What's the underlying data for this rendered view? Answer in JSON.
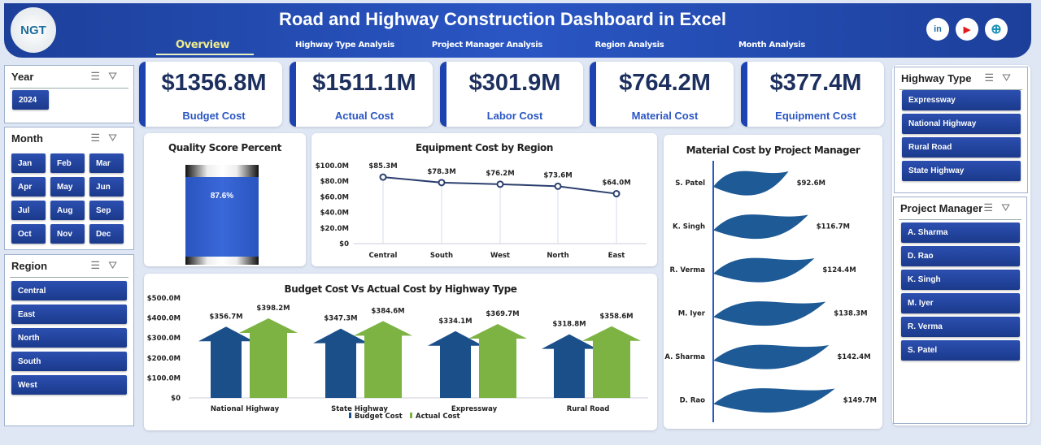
{
  "header": {
    "title": "Road and Highway Construction Dashboard in Excel",
    "logo_text": "NGT",
    "tabs": [
      {
        "label": "Overview",
        "active": true
      },
      {
        "label": "Highway Type Analysis"
      },
      {
        "label": "Project Manager Analysis"
      },
      {
        "label": "Region Analysis"
      },
      {
        "label": "Month Analysis"
      }
    ],
    "social": [
      {
        "icon": "linkedin-icon",
        "text": "in",
        "color": "#1f6fa8"
      },
      {
        "icon": "youtube-icon",
        "text": "▶",
        "color": "#e21b1b"
      },
      {
        "icon": "globe-icon",
        "text": "⊕",
        "color": "#1a8fb5"
      }
    ]
  },
  "slicers": {
    "year": {
      "title": "Year",
      "items": [
        "2024"
      ]
    },
    "month": {
      "title": "Month",
      "items": [
        "Jan",
        "Feb",
        "Mar",
        "Apr",
        "May",
        "Jun",
        "Jul",
        "Aug",
        "Sep",
        "Oct",
        "Nov",
        "Dec"
      ]
    },
    "region": {
      "title": "Region",
      "items": [
        "Central",
        "East",
        "North",
        "South",
        "West"
      ]
    },
    "highway_type": {
      "title": "Highway Type",
      "items": [
        "Expressway",
        "National Highway",
        "Rural Road",
        "State Highway"
      ]
    },
    "project_manager": {
      "title": "Project Manager",
      "items": [
        "A. Sharma",
        "D. Rao",
        "K. Singh",
        "M. Iyer",
        "R. Verma",
        "S. Patel"
      ]
    },
    "multiselect_icon": "☰",
    "clear_filter_icon": "⛛"
  },
  "kpis": [
    {
      "value": "$1356.8M",
      "label": "Budget Cost"
    },
    {
      "value": "$1511.1M",
      "label": "Actual Cost"
    },
    {
      "value": "$301.9M",
      "label": "Labor Cost"
    },
    {
      "value": "$764.2M",
      "label": "Material Cost"
    },
    {
      "value": "$377.4M",
      "label": "Equipment Cost"
    }
  ],
  "colors": {
    "accent": "#1d43b0",
    "budget": "#1b4f8a",
    "actual": "#7cb342",
    "line": "#2b3f6e"
  },
  "chart_data": [
    {
      "type": "gauge",
      "title": "Quality Score Percent",
      "value": 87.6,
      "label": "87.6%"
    },
    {
      "type": "line",
      "title": "Equipment Cost by Region",
      "categories": [
        "Central",
        "South",
        "West",
        "North",
        "East"
      ],
      "values": [
        85.3,
        78.3,
        76.2,
        73.6,
        64.0
      ],
      "labels": [
        "$85.3M",
        "$78.3M",
        "$76.2M",
        "$73.6M",
        "$64.0M"
      ],
      "ylim": [
        0,
        100
      ],
      "yticks": [
        "$0",
        "$20.0M",
        "$40.0M",
        "$60.0M",
        "$80.0M",
        "$100.0M"
      ]
    },
    {
      "type": "bar",
      "title": "Budget Cost Vs Actual Cost by Highway Type",
      "categories": [
        "National Highway",
        "State Highway",
        "Expressway",
        "Rural Road"
      ],
      "series": [
        {
          "name": "Budget Cost",
          "values": [
            356.7,
            347.3,
            334.1,
            318.8
          ],
          "labels": [
            "$356.7M",
            "$347.3M",
            "$334.1M",
            "$318.8M"
          ]
        },
        {
          "name": "Actual Cost",
          "values": [
            398.2,
            384.6,
            369.7,
            358.6
          ],
          "labels": [
            "$398.2M",
            "$384.6M",
            "$369.7M",
            "$358.6M"
          ]
        }
      ],
      "ylim": [
        0,
        500
      ],
      "yticks": [
        "$0",
        "$100.0M",
        "$200.0M",
        "$300.0M",
        "$400.0M",
        "$500.0M"
      ],
      "legend": "bottom"
    },
    {
      "type": "bar-horizontal",
      "title": "Material Cost by Project Manager",
      "categories": [
        "S. Patel",
        "K. Singh",
        "R. Verma",
        "M. Iyer",
        "A. Sharma",
        "D. Rao"
      ],
      "values": [
        92.6,
        116.7,
        124.4,
        138.3,
        142.4,
        149.7
      ],
      "labels": [
        "$92.6M",
        "$116.7M",
        "$124.4M",
        "$138.3M",
        "$142.4M",
        "$149.7M"
      ]
    }
  ]
}
